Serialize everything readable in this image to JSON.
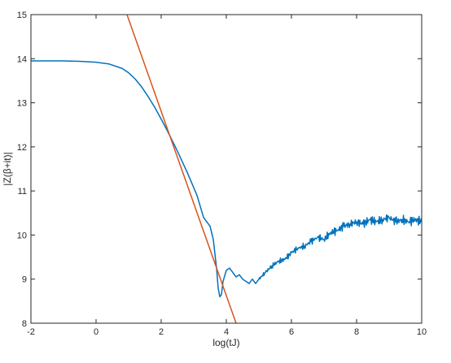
{
  "chart_data": {
    "type": "line",
    "xlabel": "log(tJ)",
    "ylabel": "|Z(β+it)|",
    "xlim": [
      -2,
      10
    ],
    "ylim": [
      8,
      15
    ],
    "x_ticks": [
      -2,
      0,
      2,
      4,
      6,
      8,
      10
    ],
    "y_ticks": [
      8,
      9,
      10,
      11,
      12,
      13,
      14,
      15
    ],
    "x_tick_labels": [
      "-2",
      "0",
      "2",
      "4",
      "6",
      "8",
      "10"
    ],
    "y_tick_labels": [
      "8",
      "9",
      "10",
      "11",
      "12",
      "13",
      "14",
      "15"
    ],
    "grid": false,
    "series": [
      {
        "color": "#0072BD",
        "x": [
          -2,
          -1.0,
          -0.5,
          0.0,
          0.4,
          0.8,
          1.0,
          1.2,
          1.4,
          1.6,
          1.8,
          2.0,
          2.2,
          2.5,
          2.8,
          3.1,
          3.3,
          3.5,
          3.6,
          3.7,
          3.75,
          3.8,
          3.85,
          3.9,
          4.0,
          4.1,
          4.2,
          4.3,
          4.4,
          4.5,
          4.6,
          4.7,
          4.8,
          4.9,
          5.0,
          5.2,
          5.4,
          5.6,
          5.8,
          6.0,
          6.2,
          6.4,
          6.6,
          6.8,
          7.0,
          7.2,
          7.4,
          7.6,
          7.8,
          8.0,
          8.2,
          8.4,
          8.6,
          8.8,
          9.0,
          9.2,
          9.4,
          9.6,
          9.8,
          10.0
        ],
        "y": [
          13.95,
          13.95,
          13.94,
          13.92,
          13.88,
          13.78,
          13.68,
          13.54,
          13.36,
          13.14,
          12.9,
          12.63,
          12.35,
          11.9,
          11.42,
          10.9,
          10.4,
          10.2,
          9.9,
          9.25,
          8.8,
          8.6,
          8.65,
          8.95,
          9.2,
          9.25,
          9.15,
          9.05,
          9.1,
          9.0,
          8.95,
          8.9,
          9.0,
          8.9,
          9.0,
          9.15,
          9.3,
          9.4,
          9.45,
          9.6,
          9.7,
          9.75,
          9.85,
          9.95,
          9.9,
          10.05,
          10.1,
          10.2,
          10.25,
          10.3,
          10.25,
          10.35,
          10.3,
          10.35,
          10.4,
          10.3,
          10.35,
          10.3,
          10.35,
          10.3
        ]
      },
      {
        "color": "#D95319",
        "x": [
          0.95,
          4.3
        ],
        "y": [
          15.0,
          8.0
        ]
      }
    ]
  }
}
